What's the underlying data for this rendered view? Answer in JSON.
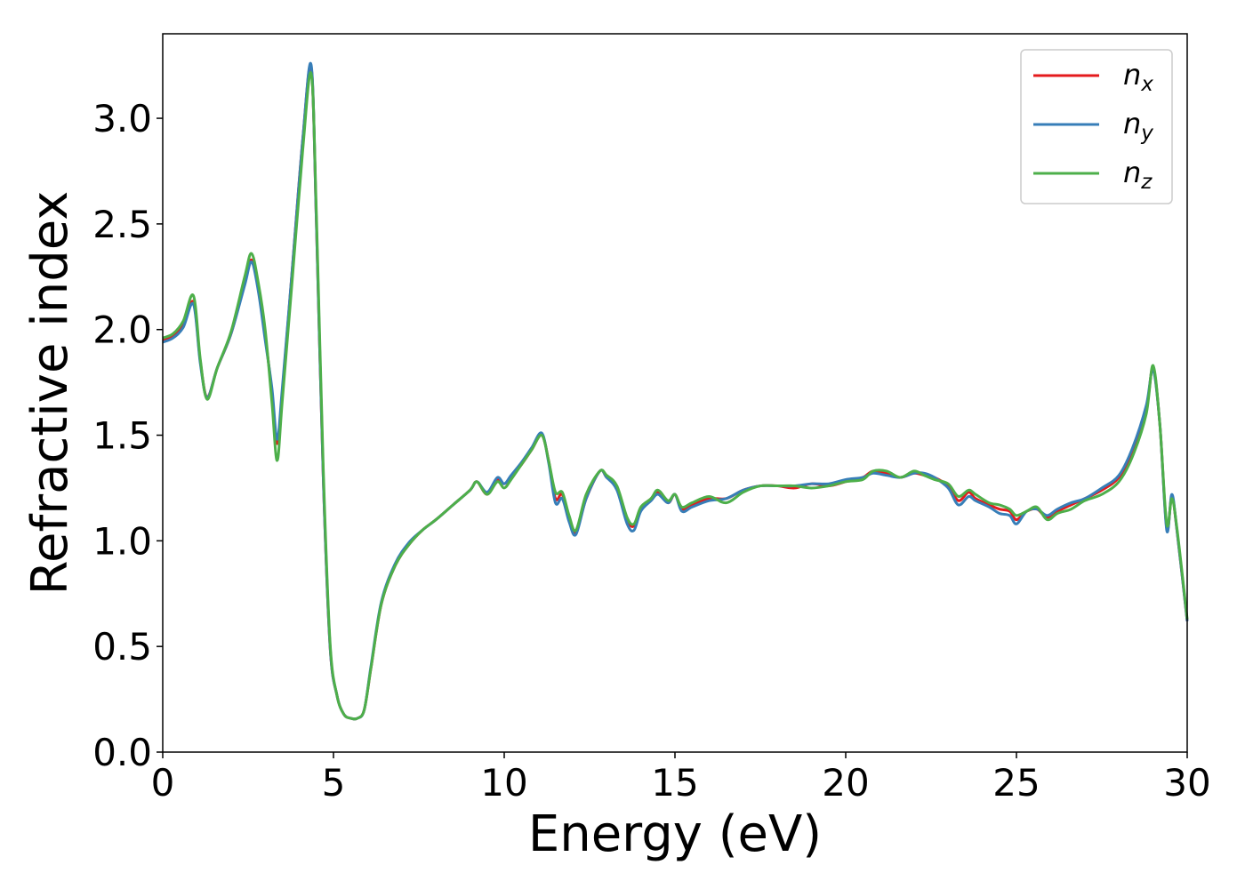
{
  "chart_data": {
    "type": "line",
    "xlabel": "Energy (eV)",
    "ylabel": "Refractive index",
    "xlim": [
      0,
      30
    ],
    "ylim": [
      0,
      3.4
    ],
    "xticks": [
      0,
      5,
      10,
      15,
      20,
      25,
      30
    ],
    "xtick_labels": [
      "0",
      "5",
      "10",
      "15",
      "20",
      "25",
      "30"
    ],
    "yticks": [
      0.0,
      0.5,
      1.0,
      1.5,
      2.0,
      2.5,
      3.0
    ],
    "ytick_labels": [
      "0.0",
      "0.5",
      "1.0",
      "1.5",
      "2.0",
      "2.5",
      "3.0"
    ],
    "grid": false,
    "legend_position": "top-right",
    "series": [
      {
        "name": "n_x",
        "legend_main": "n",
        "legend_sub": "x",
        "color": "#e41a1c",
        "x": [
          0,
          0.3,
          0.6,
          0.9,
          1.1,
          1.3,
          1.6,
          2.0,
          2.4,
          2.6,
          2.8,
          3.0,
          3.2,
          3.35,
          3.5,
          3.8,
          4.1,
          4.35,
          4.5,
          4.7,
          4.9,
          5.1,
          5.3,
          5.5,
          5.7,
          5.9,
          6.1,
          6.4,
          6.8,
          7.2,
          7.6,
          8.0,
          8.5,
          9.0,
          9.2,
          9.5,
          9.8,
          10.0,
          10.2,
          10.5,
          10.8,
          11.1,
          11.3,
          11.5,
          11.7,
          11.9,
          12.1,
          12.4,
          12.8,
          13.0,
          13.3,
          13.6,
          13.8,
          14.0,
          14.3,
          14.5,
          14.8,
          15.0,
          15.2,
          15.5,
          16.0,
          16.5,
          17.0,
          17.5,
          18.0,
          18.5,
          19.0,
          19.5,
          20.0,
          20.5,
          20.8,
          21.2,
          21.6,
          22.0,
          22.3,
          22.6,
          23.0,
          23.3,
          23.6,
          23.8,
          24.2,
          24.5,
          24.8,
          25.0,
          25.3,
          25.6,
          25.9,
          26.2,
          26.6,
          27.0,
          27.5,
          28.0,
          28.4,
          28.8,
          29.0,
          29.2,
          29.4,
          29.55,
          29.7,
          30.0
        ],
        "y": [
          1.95,
          1.97,
          2.02,
          2.13,
          1.85,
          1.68,
          1.82,
          1.98,
          2.22,
          2.33,
          2.2,
          1.97,
          1.7,
          1.46,
          1.7,
          2.3,
          2.9,
          3.24,
          2.5,
          1.3,
          0.5,
          0.27,
          0.18,
          0.16,
          0.16,
          0.2,
          0.4,
          0.7,
          0.88,
          0.98,
          1.05,
          1.1,
          1.17,
          1.24,
          1.28,
          1.22,
          1.29,
          1.27,
          1.3,
          1.36,
          1.43,
          1.5,
          1.38,
          1.2,
          1.22,
          1.1,
          1.04,
          1.2,
          1.33,
          1.3,
          1.25,
          1.1,
          1.07,
          1.15,
          1.2,
          1.23,
          1.18,
          1.22,
          1.15,
          1.17,
          1.2,
          1.2,
          1.24,
          1.26,
          1.26,
          1.25,
          1.27,
          1.26,
          1.28,
          1.3,
          1.33,
          1.32,
          1.3,
          1.32,
          1.31,
          1.3,
          1.26,
          1.19,
          1.23,
          1.2,
          1.17,
          1.15,
          1.14,
          1.1,
          1.14,
          1.15,
          1.11,
          1.14,
          1.17,
          1.2,
          1.24,
          1.3,
          1.42,
          1.62,
          1.82,
          1.55,
          1.06,
          1.21,
          1.05,
          0.62
        ]
      },
      {
        "name": "n_y",
        "legend_main": "n",
        "legend_sub": "y",
        "color": "#377eb8",
        "x": [
          0,
          0.3,
          0.6,
          0.9,
          1.1,
          1.3,
          1.6,
          2.0,
          2.4,
          2.6,
          2.8,
          3.0,
          3.2,
          3.35,
          3.5,
          3.8,
          4.1,
          4.35,
          4.5,
          4.7,
          4.9,
          5.1,
          5.3,
          5.5,
          5.7,
          5.9,
          6.1,
          6.4,
          6.8,
          7.2,
          7.6,
          8.0,
          8.5,
          9.0,
          9.2,
          9.5,
          9.8,
          10.0,
          10.2,
          10.5,
          10.8,
          11.1,
          11.3,
          11.5,
          11.7,
          11.9,
          12.1,
          12.4,
          12.8,
          13.0,
          13.3,
          13.6,
          13.8,
          14.0,
          14.3,
          14.5,
          14.8,
          15.0,
          15.2,
          15.5,
          16.0,
          16.5,
          17.0,
          17.5,
          18.0,
          18.5,
          19.0,
          19.5,
          20.0,
          20.5,
          20.8,
          21.2,
          21.6,
          22.0,
          22.3,
          22.6,
          23.0,
          23.3,
          23.6,
          23.8,
          24.2,
          24.5,
          24.8,
          25.0,
          25.3,
          25.6,
          25.9,
          26.2,
          26.6,
          27.0,
          27.5,
          28.0,
          28.4,
          28.8,
          29.0,
          29.2,
          29.4,
          29.55,
          29.7,
          30.0
        ],
        "y": [
          1.94,
          1.96,
          2.01,
          2.12,
          1.84,
          1.68,
          1.82,
          1.98,
          2.21,
          2.32,
          2.18,
          1.95,
          1.72,
          1.48,
          1.72,
          2.3,
          2.9,
          3.25,
          2.5,
          1.3,
          0.5,
          0.27,
          0.18,
          0.16,
          0.16,
          0.2,
          0.41,
          0.71,
          0.89,
          0.99,
          1.05,
          1.1,
          1.17,
          1.24,
          1.28,
          1.23,
          1.3,
          1.27,
          1.31,
          1.37,
          1.44,
          1.51,
          1.37,
          1.18,
          1.2,
          1.09,
          1.03,
          1.2,
          1.33,
          1.3,
          1.24,
          1.08,
          1.05,
          1.14,
          1.19,
          1.22,
          1.18,
          1.22,
          1.14,
          1.16,
          1.19,
          1.2,
          1.24,
          1.26,
          1.26,
          1.26,
          1.27,
          1.27,
          1.29,
          1.3,
          1.32,
          1.31,
          1.3,
          1.32,
          1.32,
          1.3,
          1.25,
          1.17,
          1.21,
          1.19,
          1.16,
          1.13,
          1.12,
          1.08,
          1.14,
          1.15,
          1.12,
          1.15,
          1.18,
          1.2,
          1.25,
          1.31,
          1.44,
          1.64,
          1.81,
          1.55,
          1.05,
          1.22,
          1.05,
          0.62
        ]
      },
      {
        "name": "n_z",
        "legend_main": "n",
        "legend_sub": "z",
        "color": "#4daf4a",
        "x": [
          0,
          0.3,
          0.6,
          0.9,
          1.1,
          1.3,
          1.6,
          2.0,
          2.4,
          2.6,
          2.8,
          3.0,
          3.2,
          3.35,
          3.5,
          3.8,
          4.1,
          4.35,
          4.5,
          4.7,
          4.9,
          5.1,
          5.3,
          5.5,
          5.7,
          5.9,
          6.1,
          6.4,
          6.8,
          7.2,
          7.6,
          8.0,
          8.5,
          9.0,
          9.2,
          9.5,
          9.8,
          10.0,
          10.2,
          10.5,
          10.8,
          11.1,
          11.3,
          11.5,
          11.7,
          11.9,
          12.1,
          12.4,
          12.8,
          13.0,
          13.3,
          13.6,
          13.8,
          14.0,
          14.3,
          14.5,
          14.8,
          15.0,
          15.2,
          15.5,
          16.0,
          16.5,
          17.0,
          17.5,
          18.0,
          18.5,
          19.0,
          19.5,
          20.0,
          20.5,
          20.8,
          21.2,
          21.6,
          22.0,
          22.3,
          22.6,
          23.0,
          23.3,
          23.6,
          23.8,
          24.2,
          24.5,
          24.8,
          25.0,
          25.3,
          25.6,
          25.9,
          26.2,
          26.6,
          27.0,
          27.5,
          28.0,
          28.4,
          28.8,
          29.0,
          29.2,
          29.4,
          29.55,
          29.7,
          30.0
        ],
        "y": [
          1.96,
          1.98,
          2.04,
          2.16,
          1.86,
          1.67,
          1.82,
          1.99,
          2.25,
          2.36,
          2.22,
          2.0,
          1.65,
          1.38,
          1.66,
          2.25,
          2.85,
          3.21,
          2.55,
          1.35,
          0.52,
          0.27,
          0.18,
          0.16,
          0.16,
          0.2,
          0.4,
          0.7,
          0.88,
          0.98,
          1.05,
          1.1,
          1.17,
          1.24,
          1.28,
          1.22,
          1.28,
          1.25,
          1.29,
          1.36,
          1.43,
          1.5,
          1.38,
          1.23,
          1.23,
          1.12,
          1.05,
          1.22,
          1.33,
          1.31,
          1.26,
          1.11,
          1.08,
          1.16,
          1.2,
          1.24,
          1.19,
          1.22,
          1.16,
          1.18,
          1.21,
          1.18,
          1.23,
          1.26,
          1.26,
          1.26,
          1.25,
          1.26,
          1.28,
          1.29,
          1.33,
          1.33,
          1.3,
          1.33,
          1.31,
          1.29,
          1.27,
          1.21,
          1.24,
          1.22,
          1.18,
          1.17,
          1.15,
          1.12,
          1.14,
          1.16,
          1.1,
          1.13,
          1.15,
          1.19,
          1.22,
          1.28,
          1.4,
          1.6,
          1.83,
          1.55,
          1.08,
          1.2,
          1.06,
          0.63
        ]
      }
    ]
  }
}
